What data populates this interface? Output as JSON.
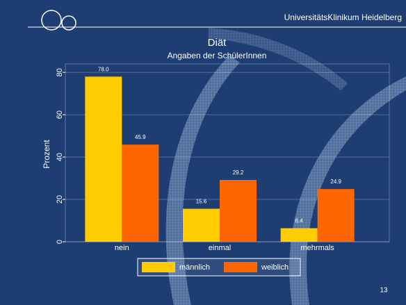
{
  "header": {
    "institution": "UniversitätsKlinikum Heidelberg",
    "page_number": "13"
  },
  "chart_data": {
    "type": "bar",
    "title": "Diät",
    "subtitle": "Angaben der SchülerInnen",
    "y_label": "Prozent",
    "categories": [
      "nein",
      "einmal",
      "mehrmals"
    ],
    "series": [
      {
        "name": "männlich",
        "color": "#ffcc00",
        "values": [
          78.0,
          15.6,
          6.4
        ],
        "value_labels": [
          "78.0",
          "15.6",
          "6.4"
        ]
      },
      {
        "name": "weiblich",
        "color": "#ff6600",
        "values": [
          45.9,
          29.2,
          24.9
        ],
        "value_labels": [
          "45.9",
          "29.2",
          "24.9"
        ]
      }
    ],
    "ylim": [
      0,
      84
    ],
    "yticks": [
      0,
      20,
      40,
      60,
      80
    ],
    "grid": true
  }
}
